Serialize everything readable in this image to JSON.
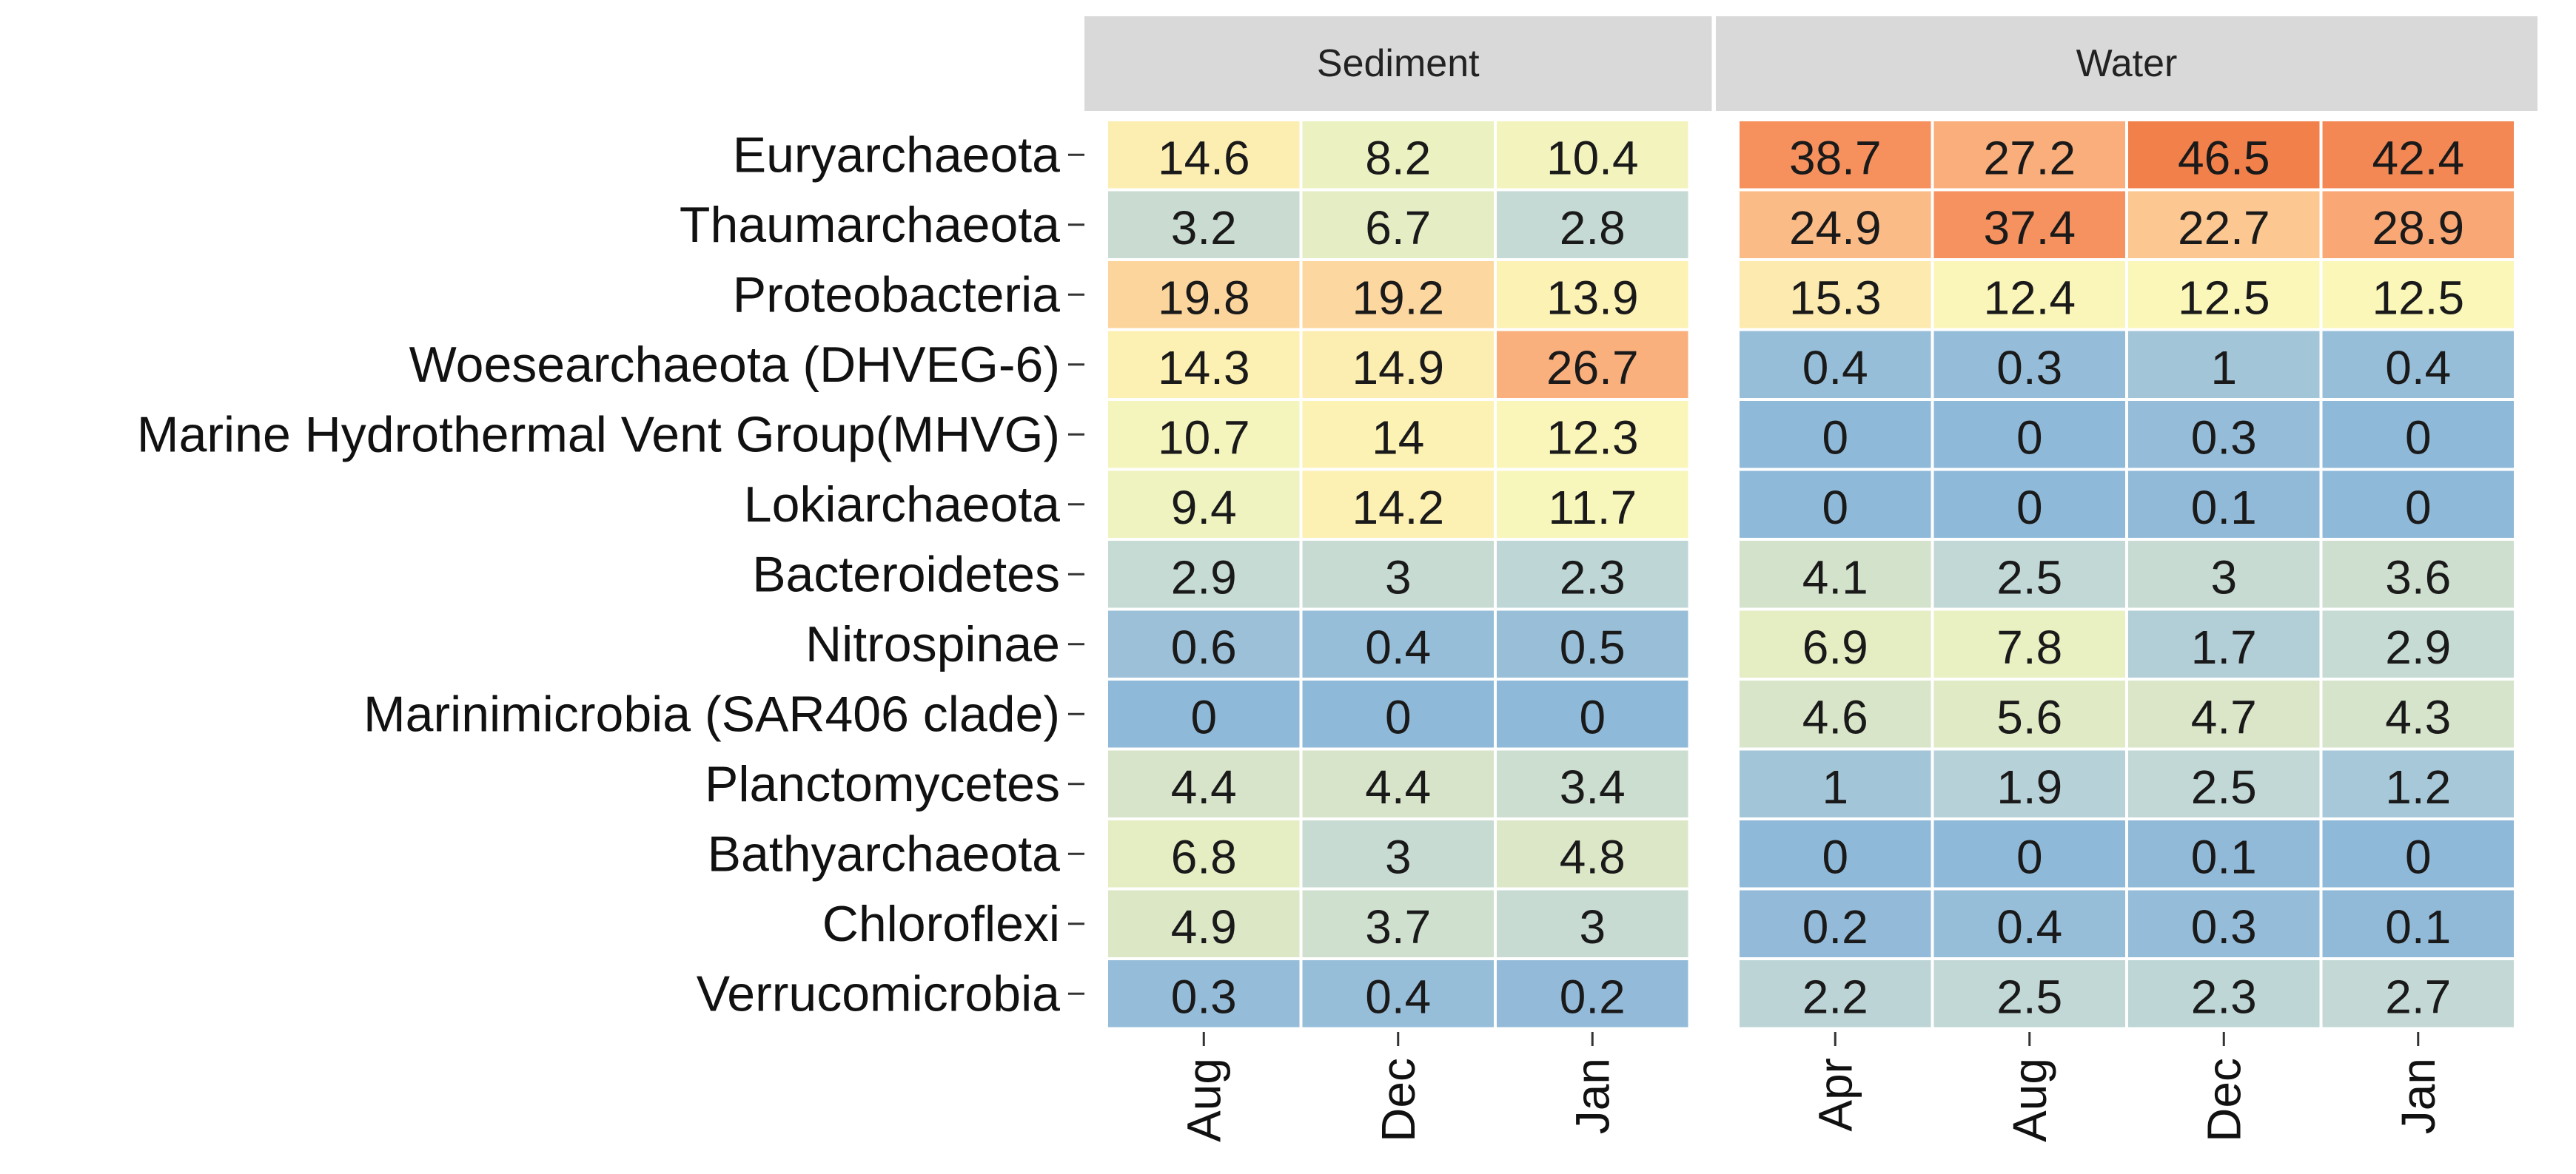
{
  "chart_data": {
    "type": "heatmap",
    "rows": [
      "Euryarchaeota",
      "Thaumarchaeota",
      "Proteobacteria",
      "Woesearchaeota (DHVEG-6)",
      "Marine Hydrothermal Vent Group(MHVG)",
      "Lokiarchaeota",
      "Bacteroidetes",
      "Nitrospinae",
      "Marinimicrobia (SAR406 clade)",
      "Planctomycetes",
      "Bathyarchaeota",
      "Chloroflexi",
      "Verrucomicrobia"
    ],
    "panels": [
      {
        "name": "Sediment",
        "columns": [
          "Aug",
          "Dec",
          "Jan"
        ],
        "values": [
          [
            14.6,
            8.2,
            10.4
          ],
          [
            3.2,
            6.7,
            2.8
          ],
          [
            19.8,
            19.2,
            13.9
          ],
          [
            14.3,
            14.9,
            26.7
          ],
          [
            10.7,
            14,
            12.3
          ],
          [
            9.4,
            14.2,
            11.7
          ],
          [
            2.9,
            3,
            2.3
          ],
          [
            0.6,
            0.4,
            0.5
          ],
          [
            0,
            0,
            0
          ],
          [
            4.4,
            4.4,
            3.4
          ],
          [
            6.8,
            3,
            4.8
          ],
          [
            4.9,
            3.7,
            3
          ],
          [
            0.3,
            0.4,
            0.2
          ]
        ]
      },
      {
        "name": "Water",
        "columns": [
          "Apr",
          "Aug",
          "Dec",
          "Jan"
        ],
        "values": [
          [
            38.7,
            27.2,
            46.5,
            42.4
          ],
          [
            24.9,
            37.4,
            22.7,
            28.9
          ],
          [
            15.3,
            12.4,
            12.5,
            12.5
          ],
          [
            0.4,
            0.3,
            1,
            0.4
          ],
          [
            0,
            0,
            0.3,
            0
          ],
          [
            0,
            0,
            0.1,
            0
          ],
          [
            4.1,
            2.5,
            3,
            3.6
          ],
          [
            6.9,
            7.8,
            1.7,
            2.9
          ],
          [
            4.6,
            5.6,
            4.7,
            4.3
          ],
          [
            1,
            1.9,
            2.5,
            1.2
          ],
          [
            0,
            0,
            0.1,
            0
          ],
          [
            0.2,
            0.4,
            0.3,
            0.1
          ],
          [
            2.2,
            2.5,
            2.3,
            2.7
          ]
        ]
      }
    ],
    "color_scale": {
      "stops": [
        {
          "value": 0,
          "color": "#8fb9d9"
        },
        {
          "value": 2.5,
          "color": "#c2d8d6"
        },
        {
          "value": 5,
          "color": "#dde8c5"
        },
        {
          "value": 9,
          "color": "#eef3c0"
        },
        {
          "value": 13,
          "color": "#fcf7b8"
        },
        {
          "value": 17,
          "color": "#fce1a7"
        },
        {
          "value": 22,
          "color": "#fccb94"
        },
        {
          "value": 28,
          "color": "#f9a977"
        },
        {
          "value": 38,
          "color": "#f6915d"
        },
        {
          "value": 47,
          "color": "#f27f4a"
        }
      ]
    },
    "strip_background": "#d9d9d9",
    "grid_line_color": "#ffffff"
  }
}
